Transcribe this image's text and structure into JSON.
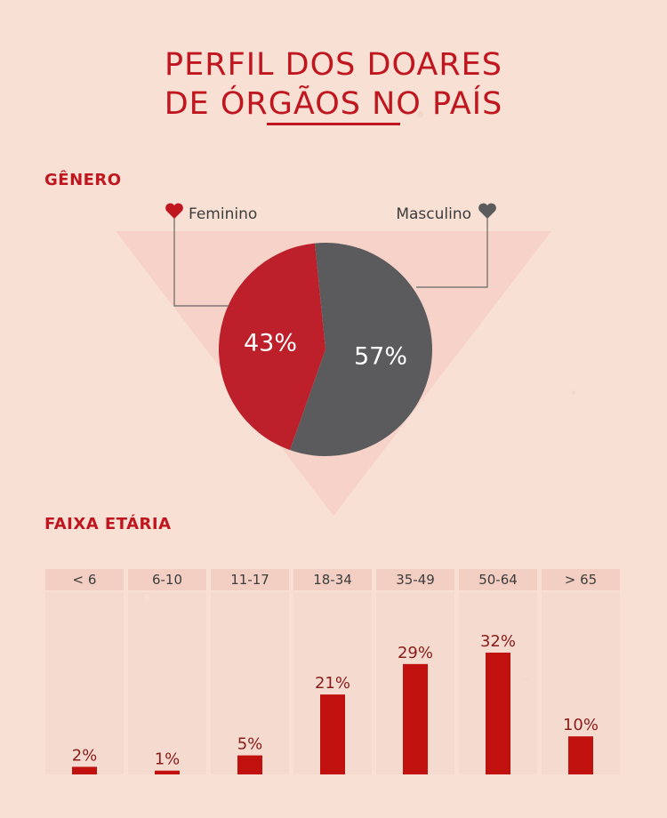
{
  "title": {
    "line1": "PERFIL DOS DOARES",
    "line2": "DE ÓRGÃOS NO PAÍS"
  },
  "sections": {
    "gender": "GÊNERO",
    "age": "FAIXA ETÁRIA"
  },
  "colors": {
    "accent": "#c0161f",
    "female": "#bd1f2b",
    "male": "#5b5b5d",
    "bar": "#c0110f",
    "background": "#f8e1d4"
  },
  "chart_data": [
    {
      "type": "pie",
      "title": "GÊNERO",
      "slices": [
        {
          "label": "Feminino",
          "value": 43,
          "display": "43%",
          "color": "#bd1f2b",
          "legend_icon": "heart-icon"
        },
        {
          "label": "Masculino",
          "value": 57,
          "display": "57%",
          "color": "#5b5b5d",
          "legend_icon": "heart-icon"
        }
      ]
    },
    {
      "type": "bar",
      "title": "FAIXA ETÁRIA",
      "categories": [
        "< 6",
        "6-10",
        "11-17",
        "18-34",
        "35-49",
        "50-64",
        "> 65"
      ],
      "values": [
        2,
        1,
        5,
        21,
        29,
        32,
        10
      ],
      "value_labels": [
        "2%",
        "1%",
        "5%",
        "21%",
        "29%",
        "32%",
        "10%"
      ],
      "unit": "%",
      "ylim": [
        0,
        40
      ],
      "grid": false
    }
  ]
}
